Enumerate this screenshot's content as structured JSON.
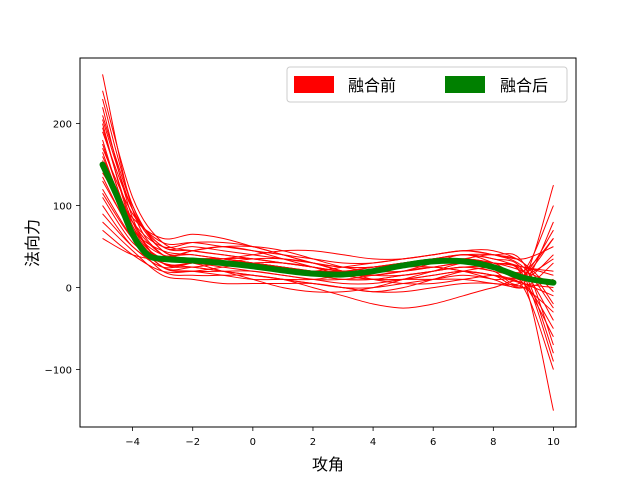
{
  "chart_data": {
    "type": "line",
    "title": "",
    "xlabel": "攻角",
    "ylabel": "法向力",
    "xlim": [
      -5.75,
      10.75
    ],
    "ylim": [
      -170,
      280
    ],
    "xticks": [
      -4,
      -2,
      0,
      2,
      4,
      6,
      8,
      10
    ],
    "yticks": [
      -100,
      0,
      100,
      200
    ],
    "grid": false,
    "legend": {
      "placement": "top-right",
      "entries": [
        {
          "label": "融合前",
          "color": "#ff0000"
        },
        {
          "label": "融合后",
          "color": "#008000"
        }
      ]
    },
    "series": [
      {
        "name": "融合前",
        "color": "#ff0000",
        "line_width": 1,
        "x": [
          -5,
          -4,
          -3,
          -2,
          -1,
          0,
          1,
          2,
          3,
          4,
          5,
          6,
          7,
          8,
          9,
          10
        ],
        "curves": [
          [
            260,
            95,
            40,
            35,
            30,
            25,
            20,
            15,
            10,
            10,
            15,
            20,
            25,
            20,
            10,
            125
          ],
          [
            240,
            110,
            55,
            45,
            40,
            35,
            30,
            25,
            20,
            20,
            25,
            30,
            35,
            30,
            20,
            100
          ],
          [
            220,
            85,
            30,
            30,
            25,
            20,
            15,
            10,
            10,
            15,
            20,
            25,
            20,
            15,
            5,
            80
          ],
          [
            210,
            100,
            45,
            40,
            35,
            30,
            25,
            20,
            20,
            20,
            25,
            30,
            30,
            25,
            15,
            60
          ],
          [
            200,
            75,
            35,
            35,
            35,
            30,
            25,
            20,
            15,
            15,
            20,
            25,
            30,
            25,
            10,
            40
          ],
          [
            190,
            95,
            50,
            45,
            40,
            35,
            30,
            25,
            20,
            25,
            30,
            35,
            40,
            35,
            25,
            20
          ],
          [
            180,
            70,
            25,
            20,
            20,
            20,
            15,
            10,
            5,
            5,
            10,
            15,
            20,
            15,
            5,
            0
          ],
          [
            170,
            90,
            55,
            55,
            50,
            45,
            40,
            35,
            30,
            30,
            35,
            40,
            45,
            40,
            30,
            -20
          ],
          [
            160,
            80,
            40,
            35,
            30,
            25,
            20,
            15,
            15,
            20,
            25,
            30,
            35,
            30,
            20,
            -40
          ],
          [
            150,
            65,
            30,
            30,
            30,
            25,
            20,
            15,
            10,
            10,
            15,
            20,
            25,
            20,
            5,
            -60
          ],
          [
            140,
            85,
            60,
            65,
            60,
            50,
            40,
            30,
            25,
            25,
            30,
            35,
            40,
            35,
            20,
            -80
          ],
          [
            130,
            70,
            45,
            40,
            35,
            30,
            25,
            20,
            20,
            25,
            30,
            35,
            35,
            30,
            15,
            -90
          ],
          [
            120,
            60,
            20,
            15,
            15,
            15,
            10,
            5,
            0,
            0,
            5,
            10,
            15,
            10,
            0,
            -100
          ],
          [
            110,
            55,
            35,
            35,
            35,
            30,
            25,
            20,
            15,
            15,
            20,
            30,
            40,
            30,
            10,
            -150
          ],
          [
            100,
            50,
            30,
            25,
            20,
            15,
            10,
            5,
            0,
            -5,
            0,
            10,
            20,
            25,
            20,
            60
          ],
          [
            90,
            50,
            25,
            30,
            35,
            35,
            30,
            25,
            20,
            20,
            25,
            25,
            20,
            10,
            0,
            30
          ],
          [
            80,
            45,
            15,
            10,
            5,
            5,
            5,
            5,
            0,
            -5,
            -5,
            0,
            5,
            5,
            0,
            10
          ],
          [
            70,
            40,
            20,
            20,
            25,
            30,
            30,
            25,
            15,
            10,
            10,
            15,
            20,
            15,
            5,
            -10
          ],
          [
            60,
            40,
            35,
            45,
            50,
            45,
            35,
            25,
            15,
            10,
            10,
            10,
            10,
            5,
            0,
            -30
          ],
          [
            230,
            100,
            50,
            50,
            45,
            40,
            35,
            30,
            25,
            25,
            30,
            35,
            40,
            40,
            35,
            50
          ],
          [
            195,
            80,
            30,
            25,
            20,
            15,
            10,
            0,
            -10,
            -20,
            -25,
            -20,
            -10,
            0,
            5,
            -50
          ],
          [
            175,
            75,
            40,
            45,
            50,
            50,
            45,
            35,
            25,
            20,
            20,
            25,
            30,
            30,
            20,
            5
          ],
          [
            155,
            70,
            30,
            30,
            35,
            40,
            45,
            45,
            40,
            35,
            35,
            40,
            45,
            45,
            30,
            -5
          ],
          [
            135,
            65,
            25,
            20,
            15,
            10,
            10,
            10,
            15,
            20,
            25,
            30,
            35,
            40,
            30,
            -70
          ],
          [
            115,
            60,
            35,
            30,
            20,
            10,
            0,
            -5,
            -5,
            0,
            10,
            20,
            30,
            30,
            25,
            15
          ],
          [
            145,
            80,
            50,
            55,
            55,
            50,
            40,
            30,
            20,
            15,
            15,
            20,
            25,
            25,
            15,
            35
          ],
          [
            205,
            95,
            45,
            35,
            30,
            25,
            20,
            20,
            25,
            30,
            35,
            40,
            45,
            40,
            25,
            -25
          ],
          [
            165,
            70,
            25,
            25,
            30,
            35,
            35,
            30,
            20,
            10,
            5,
            5,
            10,
            15,
            15,
            70
          ]
        ]
      },
      {
        "name": "融合后",
        "color": "#008000",
        "line_width": 6,
        "x": [
          -5,
          -4.5,
          -4,
          -3.5,
          -3,
          -2,
          -1,
          0,
          1,
          2,
          3,
          4,
          5,
          6,
          7,
          8,
          9,
          10
        ],
        "y": [
          150,
          110,
          65,
          40,
          35,
          33,
          30,
          26,
          21,
          17,
          16,
          20,
          27,
          32,
          32,
          25,
          12,
          6
        ]
      }
    ]
  }
}
